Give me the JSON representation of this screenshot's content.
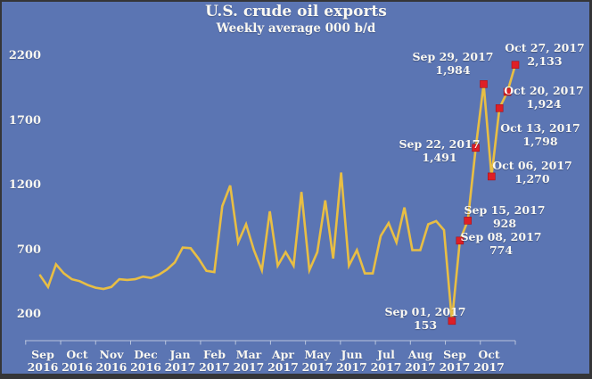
{
  "colors": {
    "background": "#5b75b3",
    "frame_border": "#353537",
    "line": "#e8be44",
    "marker": "#de1f26",
    "text": "#faf8f2",
    "axis": "#c9d2e4"
  },
  "chart_data": {
    "type": "line",
    "title": "U.S. crude oil exports",
    "subtitle": "Weekly average 000 b/d",
    "xlabel": "",
    "ylabel": "",
    "ylim": [
      200,
      2200
    ],
    "grid": false,
    "legend": false,
    "y_ticks": [
      2200,
      1700,
      1200,
      700,
      200
    ],
    "x_month_ticks": [
      {
        "month": "Sep",
        "year": "2016"
      },
      {
        "month": "Oct",
        "year": "2016"
      },
      {
        "month": "Nov",
        "year": "2016"
      },
      {
        "month": "Dec",
        "year": "2016"
      },
      {
        "month": "Jan",
        "year": "2017"
      },
      {
        "month": "Feb",
        "year": "2017"
      },
      {
        "month": "Mar",
        "year": "2017"
      },
      {
        "month": "Apr",
        "year": "2017"
      },
      {
        "month": "May",
        "year": "2017"
      },
      {
        "month": "Jun",
        "year": "2017"
      },
      {
        "month": "Jul",
        "year": "2017"
      },
      {
        "month": "Aug",
        "year": "2017"
      },
      {
        "month": "Sep",
        "year": "2017"
      },
      {
        "month": "Oct",
        "year": "2017"
      }
    ],
    "x": [
      "Sep 02, 2016",
      "Sep 09, 2016",
      "Sep 16, 2016",
      "Sep 23, 2016",
      "Sep 30, 2016",
      "Oct 07, 2016",
      "Oct 14, 2016",
      "Oct 21, 2016",
      "Oct 28, 2016",
      "Nov 04, 2016",
      "Nov 11, 2016",
      "Nov 18, 2016",
      "Nov 25, 2016",
      "Dec 02, 2016",
      "Dec 09, 2016",
      "Dec 16, 2016",
      "Dec 23, 2016",
      "Dec 30, 2016",
      "Jan 06, 2017",
      "Jan 13, 2017",
      "Jan 20, 2017",
      "Jan 27, 2017",
      "Feb 03, 2017",
      "Feb 10, 2017",
      "Feb 17, 2017",
      "Feb 24, 2017",
      "Mar 03, 2017",
      "Mar 10, 2017",
      "Mar 17, 2017",
      "Mar 24, 2017",
      "Mar 31, 2017",
      "Apr 07, 2017",
      "Apr 14, 2017",
      "Apr 21, 2017",
      "Apr 28, 2017",
      "May 05, 2017",
      "May 12, 2017",
      "May 19, 2017",
      "May 26, 2017",
      "Jun 02, 2017",
      "Jun 09, 2017",
      "Jun 16, 2017",
      "Jun 23, 2017",
      "Jun 30, 2017",
      "Jul 07, 2017",
      "Jul 14, 2017",
      "Jul 21, 2017",
      "Jul 28, 2017",
      "Aug 04, 2017",
      "Aug 11, 2017",
      "Aug 18, 2017",
      "Aug 25, 2017",
      "Sep 01, 2017",
      "Sep 08, 2017",
      "Sep 15, 2017",
      "Sep 22, 2017",
      "Sep 29, 2017",
      "Oct 06, 2017",
      "Oct 13, 2017",
      "Oct 20, 2017",
      "Oct 27, 2017"
    ],
    "values": [
      505,
      415,
      590,
      520,
      475,
      460,
      430,
      410,
      400,
      415,
      475,
      470,
      475,
      495,
      485,
      510,
      550,
      605,
      720,
      715,
      635,
      540,
      530,
      1040,
      1200,
      760,
      900,
      700,
      545,
      1000,
      580,
      685,
      580,
      1150,
      545,
      685,
      1085,
      635,
      1300,
      580,
      700,
      520,
      520,
      810,
      910,
      760,
      1030,
      700,
      700,
      900,
      925,
      855,
      153,
      774,
      928,
      1491,
      1984,
      1270,
      1798,
      1924,
      2133
    ],
    "annotations": [
      {
        "index": 52,
        "date": "Sep 01, 2017",
        "value": "153"
      },
      {
        "index": 53,
        "date": "Sep 08, 2017",
        "value": "774"
      },
      {
        "index": 54,
        "date": "Sep 15, 2017",
        "value": "928"
      },
      {
        "index": 55,
        "date": "Sep 22, 2017",
        "value": "1,491"
      },
      {
        "index": 56,
        "date": "Sep 29, 2017",
        "value": "1,984"
      },
      {
        "index": 57,
        "date": "Oct 06, 2017",
        "value": "1,270"
      },
      {
        "index": 58,
        "date": "Oct 13, 2017",
        "value": "1,798"
      },
      {
        "index": 59,
        "date": "Oct 20, 2017",
        "value": "1,924"
      },
      {
        "index": 60,
        "date": "Oct 27, 2017",
        "value": "2,133"
      }
    ]
  }
}
